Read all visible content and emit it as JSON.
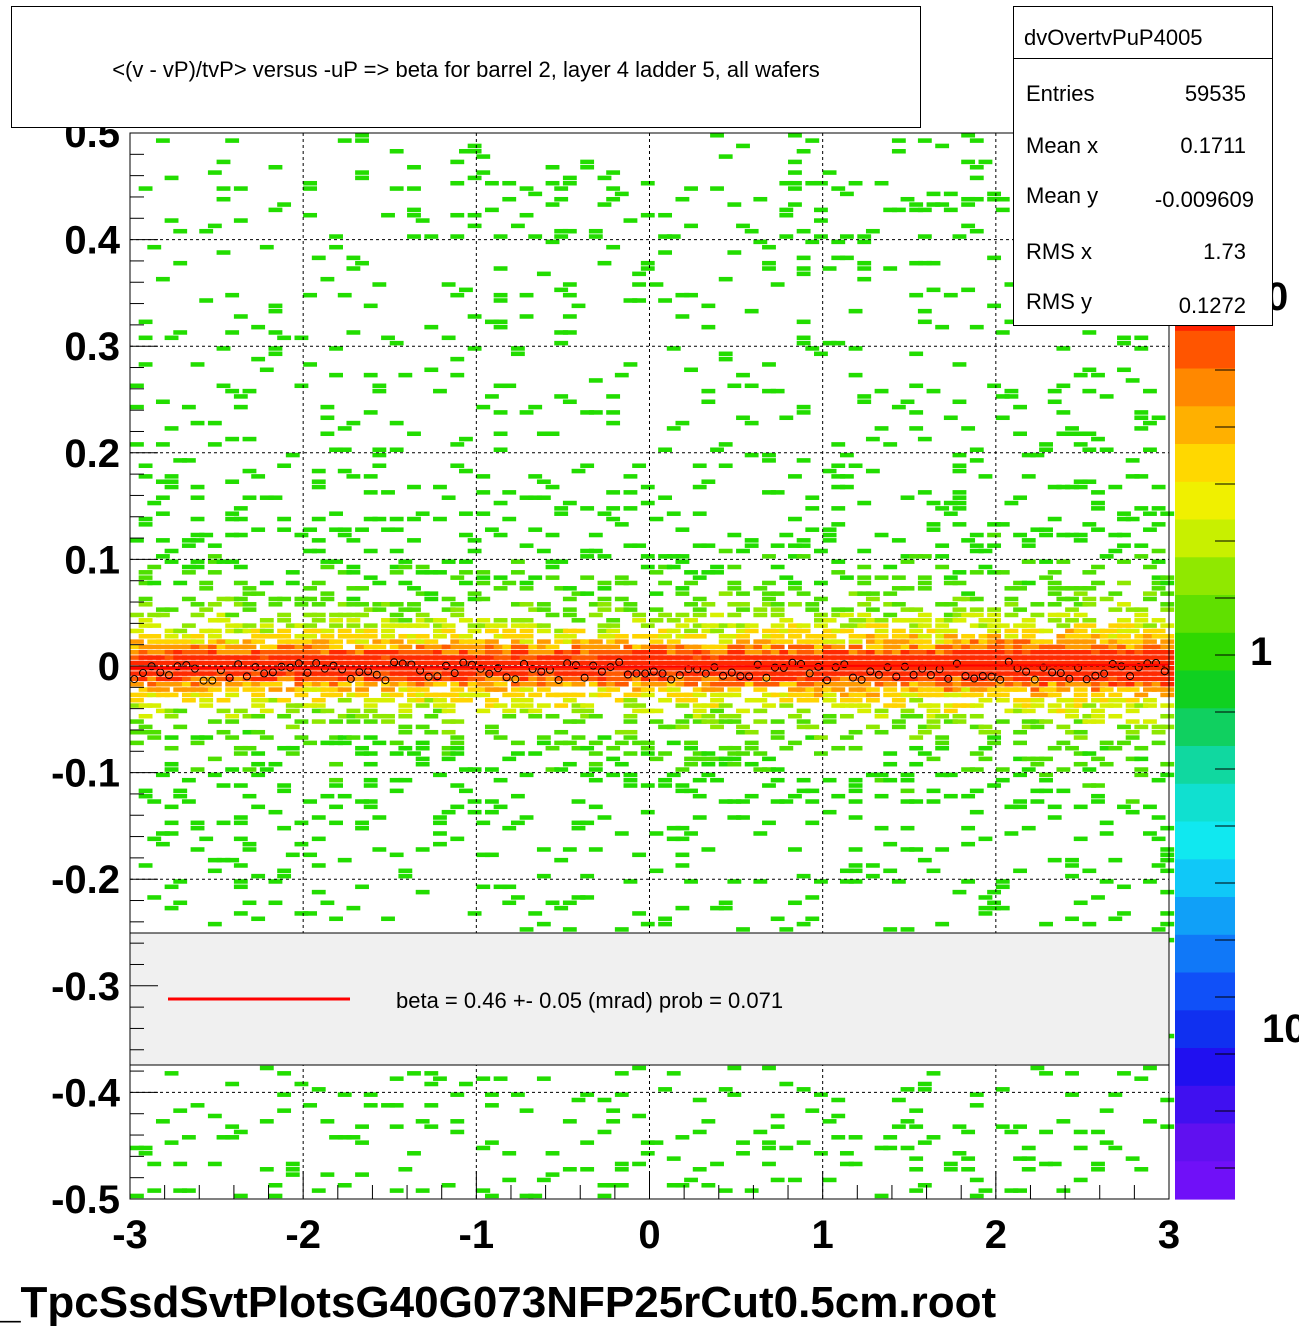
{
  "title": "<(v - vP)/tvP> versus  -uP => beta for barrel 2, layer 4 ladder 5, all wafers",
  "footer": "_TpcSsdSvtPlotsG40G073NFP25rCut0.5cm.root",
  "stats": {
    "name": "dvOvertvPuP4005",
    "rows": [
      {
        "label": "Entries",
        "value": "59535"
      },
      {
        "label": "Mean x",
        "value": "0.1711"
      },
      {
        "label": "Mean y",
        "value": "-0.009609"
      },
      {
        "label": "RMS x",
        "value": "1.73"
      },
      {
        "label": "RMS y",
        "value": "0.1272"
      }
    ]
  },
  "legend": {
    "line_color": "#ff0000",
    "text": "beta =    0.46 +-  0.05 (mrad) prob = 0.071"
  },
  "palette": {
    "labels": [
      "0",
      "1",
      "10"
    ]
  },
  "chart_data": {
    "type": "heatmap",
    "title": "<(v - vP)/tvP> versus  -uP => beta for barrel 2, layer 4 ladder 5, all wafers",
    "xlim": [
      -3,
      3
    ],
    "ylim": [
      -0.5,
      0.5
    ],
    "x_ticks": [
      "-3",
      "-2",
      "-1",
      "0",
      "1",
      "2",
      "3"
    ],
    "y_ticks": [
      "-0.5",
      "-0.4",
      "-0.3",
      "-0.2",
      "-0.1",
      "0",
      "0.1",
      "0.2",
      "0.3",
      "0.4",
      "0.5"
    ],
    "grid": true,
    "z_scale": "log",
    "band_center_y": 0.0,
    "fit_line": {
      "color": "#ff0000",
      "slope_mrad": 0.46,
      "error_mrad": 0.05,
      "prob": 0.071
    },
    "profile_marker_y": -0.005
  }
}
